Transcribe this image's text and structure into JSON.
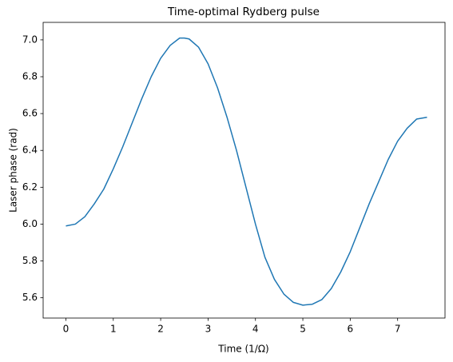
{
  "chart_data": {
    "type": "line",
    "title": "Time-optimal Rydberg pulse",
    "x_label": "Time (1/Ω)",
    "y_label": "Laser phase (rad)",
    "x": [
      0,
      0.2,
      0.4,
      0.6,
      0.8,
      1.0,
      1.2,
      1.4,
      1.6,
      1.8,
      2.0,
      2.2,
      2.4,
      2.5,
      2.6,
      2.8,
      3.0,
      3.2,
      3.4,
      3.6,
      3.8,
      4.0,
      4.2,
      4.4,
      4.6,
      4.8,
      5.0,
      5.2,
      5.4,
      5.6,
      5.8,
      6.0,
      6.2,
      6.4,
      6.6,
      6.8,
      7.0,
      7.2,
      7.4,
      7.62
    ],
    "values": [
      5.99,
      6.0,
      6.04,
      6.11,
      6.19,
      6.3,
      6.42,
      6.55,
      6.68,
      6.8,
      6.9,
      6.97,
      7.01,
      7.01,
      7.005,
      6.96,
      6.87,
      6.74,
      6.58,
      6.4,
      6.2,
      6.0,
      5.82,
      5.7,
      5.62,
      5.575,
      5.56,
      5.565,
      5.59,
      5.65,
      5.74,
      5.85,
      5.98,
      6.11,
      6.23,
      6.35,
      6.45,
      6.52,
      6.57,
      6.58
    ],
    "color": "#1f77b4",
    "xlim": [
      -0.48,
      8.0
    ],
    "xticks": [
      0,
      1,
      2,
      3,
      4,
      5,
      6,
      7
    ],
    "ylim": [
      5.49,
      7.095
    ],
    "yticks": [
      5.6,
      5.8,
      {
        "value": 6,
        "label": "6.0"
      },
      6.2,
      6.4,
      6.6,
      6.8,
      {
        "value": 7,
        "label": "7.0"
      }
    ],
    "grid": false
  }
}
